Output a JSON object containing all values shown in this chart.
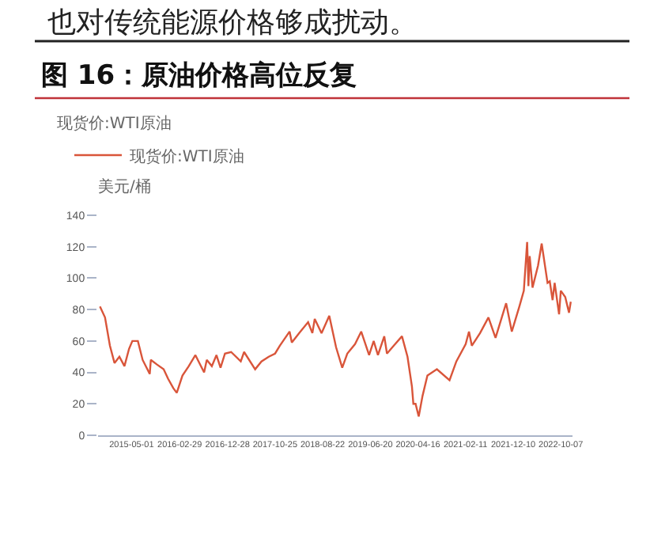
{
  "chart_data": {
    "type": "line",
    "title": "图 16：原油价格高位反复",
    "subtitle": "现货价:WTI原油",
    "ylabel": "美元/桶",
    "annotations": [
      "也对传统能源价格够成扰动。"
    ],
    "x": [
      "2014-10-13",
      "2014-11-14",
      "2014-12-15",
      "2015-01-13",
      "2015-02-13",
      "2015-03-17",
      "2015-04-15",
      "2015-05-06",
      "2015-06-10",
      "2015-07-10",
      "2015-08-24",
      "2015-08-31",
      "2015-10-09",
      "2015-11-20",
      "2015-12-18",
      "2016-01-20",
      "2016-02-11",
      "2016-03-18",
      "2016-04-27",
      "2016-06-08",
      "2016-08-02",
      "2016-08-19",
      "2016-09-20",
      "2016-10-19",
      "2016-11-14",
      "2016-12-12",
      "2017-01-20",
      "2017-03-22",
      "2017-04-12",
      "2017-06-21",
      "2017-07-31",
      "2017-09-15",
      "2017-10-25",
      "2017-11-24",
      "2018-01-25",
      "2018-02-08",
      "2018-03-26",
      "2018-05-22",
      "2018-06-18",
      "2018-07-03",
      "2018-08-15",
      "2018-10-03",
      "2018-11-15",
      "2018-12-24",
      "2019-01-25",
      "2019-03-15",
      "2019-04-23",
      "2019-06-12",
      "2019-07-11",
      "2019-08-07",
      "2019-09-16",
      "2019-10-03",
      "2019-11-15",
      "2020-01-06",
      "2020-02-10",
      "2020-03-09",
      "2020-03-18",
      "2020-04-01",
      "2020-04-21",
      "2020-05-15",
      "2020-06-15",
      "2020-08-14",
      "2020-11-02",
      "2020-12-15",
      "2021-02-12",
      "2021-03-05",
      "2021-03-23",
      "2021-05-14",
      "2021-07-06",
      "2021-08-20",
      "2021-10-26",
      "2021-12-01",
      "2022-01-18",
      "2022-02-15",
      "2022-03-08",
      "2022-03-16",
      "2022-03-24",
      "2022-04-11",
      "2022-05-16",
      "2022-06-08",
      "2022-07-15",
      "2022-07-29",
      "2022-08-16",
      "2022-08-29",
      "2022-09-26",
      "2022-10-07",
      "2022-11-04",
      "2022-11-28",
      "2022-12-09"
    ],
    "series": [
      {
        "name": "现货价:WTI原油",
        "color": "#d9553a",
        "values": [
          82,
          75,
          57,
          46,
          50,
          44,
          55,
          60,
          60,
          48,
          39,
          48,
          45,
          42,
          36,
          30,
          27,
          38,
          44,
          51,
          40,
          48,
          44,
          51,
          43,
          52,
          53,
          47,
          53,
          42,
          47,
          50,
          52,
          57,
          66,
          59,
          65,
          72,
          65,
          74,
          65,
          76,
          56,
          43,
          52,
          58,
          66,
          51,
          60,
          51,
          63,
          52,
          57,
          63,
          50,
          31,
          20,
          20,
          12,
          25,
          38,
          42,
          35,
          47,
          58,
          66,
          57,
          65,
          75,
          62,
          84,
          66,
          82,
          92,
          123,
          95,
          114,
          94,
          108,
          122,
          97,
          98,
          86,
          97,
          77,
          92,
          88,
          78,
          85
        ]
      }
    ],
    "xlim": [
      "2014-10-01",
      "2022-12-20"
    ],
    "xticks": [
      "2015-05-01",
      "2016-02-29",
      "2016-12-28",
      "2017-10-25",
      "2018-08-22",
      "2019-06-20",
      "2020-04-16",
      "2021-02-11",
      "2021-12-10",
      "2022-10-07"
    ],
    "ylim": [
      0,
      140
    ],
    "yticks": [
      0,
      20,
      40,
      60,
      80,
      100,
      120,
      140
    ],
    "legend": "top left",
    "marker": "none",
    "line_style": "solid"
  }
}
